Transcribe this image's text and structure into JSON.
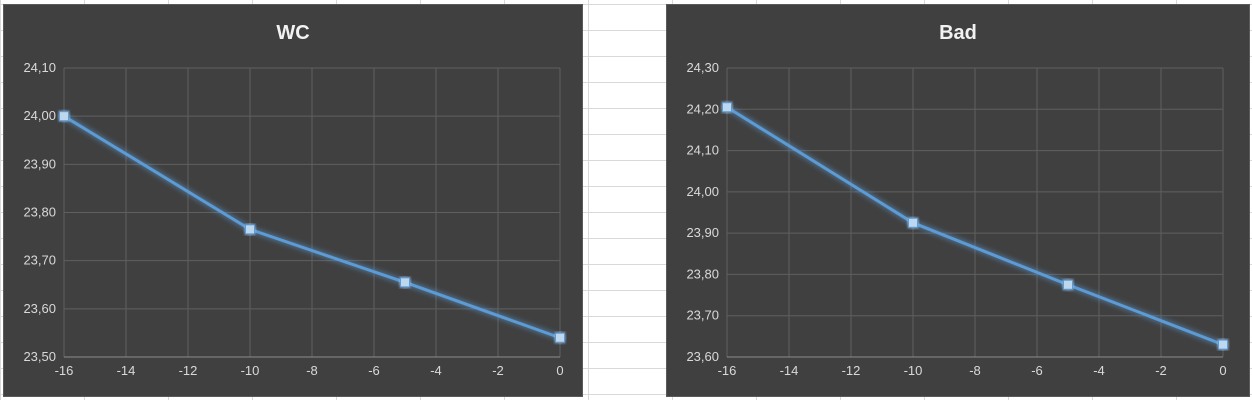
{
  "chart_data": [
    {
      "id": "wc",
      "type": "line",
      "title": "WC",
      "x": [
        -16,
        -10,
        -5,
        0
      ],
      "series": [
        {
          "values": [
            24.0,
            23.765,
            23.655,
            23.54
          ]
        }
      ],
      "xlim": [
        -16,
        0
      ],
      "xticks": [
        -16,
        -14,
        -12,
        -10,
        -8,
        -6,
        -4,
        -2,
        0
      ],
      "xtick_labels": [
        "-16",
        "-14",
        "-12",
        "-10",
        "-8",
        "-6",
        "-4",
        "-2",
        "0"
      ],
      "ylim": [
        23.5,
        24.1
      ],
      "yticks": [
        23.5,
        23.6,
        23.7,
        23.8,
        23.9,
        24.0,
        24.1
      ],
      "ytick_labels": [
        "23,50",
        "23,60",
        "23,70",
        "23,80",
        "23,90",
        "24,00",
        "24,10"
      ],
      "grid": true,
      "color": "#5b9bd5"
    },
    {
      "id": "bad",
      "type": "line",
      "title": "Bad",
      "x": [
        -16,
        -10,
        -5,
        0
      ],
      "series": [
        {
          "values": [
            24.205,
            23.925,
            23.775,
            23.63
          ]
        }
      ],
      "xlim": [
        -16,
        0
      ],
      "xticks": [
        -16,
        -14,
        -12,
        -10,
        -8,
        -6,
        -4,
        -2,
        0
      ],
      "xtick_labels": [
        "-16",
        "-14",
        "-12",
        "-10",
        "-8",
        "-6",
        "-4",
        "-2",
        "0"
      ],
      "ylim": [
        23.6,
        24.3
      ],
      "yticks": [
        23.6,
        23.7,
        23.8,
        23.9,
        24.0,
        24.1,
        24.2,
        24.3
      ],
      "ytick_labels": [
        "23,60",
        "23,70",
        "23,80",
        "23,90",
        "24,00",
        "24,10",
        "24,20",
        "24,30"
      ],
      "grid": true,
      "color": "#5b9bd5"
    }
  ]
}
